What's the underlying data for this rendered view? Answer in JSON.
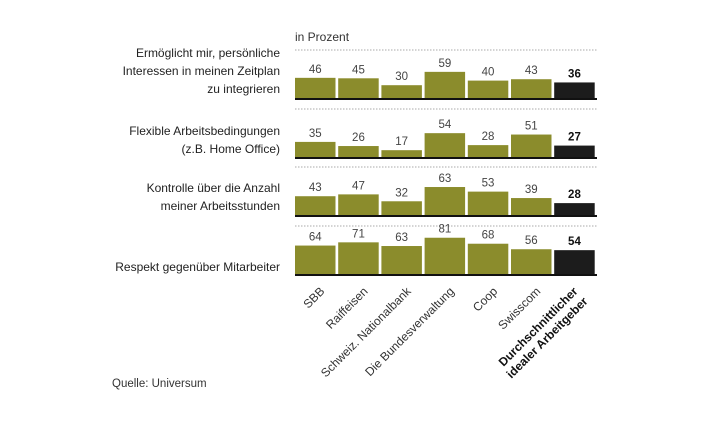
{
  "chart_data": {
    "type": "bar",
    "unit_label": "in Prozent",
    "categories": [
      "SBB",
      "Raiffeisen",
      "Schweiz. Nationalbank",
      "Die Bundesverwaltung",
      "Coop",
      "Swisscom",
      "Durchschnittlicher idealer Arbeitgeber"
    ],
    "category_lines_last": [
      "Durchschnittlicher",
      "idealer Arbeitgeber"
    ],
    "panels": [
      {
        "label_lines": [
          "Ermöglicht mir, persönliche",
          "Interessen in meinen Zeitplan",
          "zu integrieren"
        ],
        "values": [
          46,
          45,
          30,
          59,
          40,
          43,
          36
        ]
      },
      {
        "label_lines": [
          "Flexible Arbeitsbedingungen",
          "(z.B. Home Office)"
        ],
        "values": [
          35,
          26,
          17,
          54,
          28,
          51,
          27
        ]
      },
      {
        "label_lines": [
          "Kontrolle über die Anzahl",
          "meiner Arbeitsstunden"
        ],
        "values": [
          43,
          47,
          32,
          63,
          53,
          39,
          28
        ]
      },
      {
        "label_lines": [
          "Respekt gegenüber Mitarbeiter"
        ],
        "values": [
          64,
          71,
          63,
          81,
          68,
          56,
          54
        ]
      }
    ],
    "colors": {
      "employer": "#8b8c2c",
      "average": "#1c1c1c"
    },
    "source": "Quelle: Universum"
  }
}
